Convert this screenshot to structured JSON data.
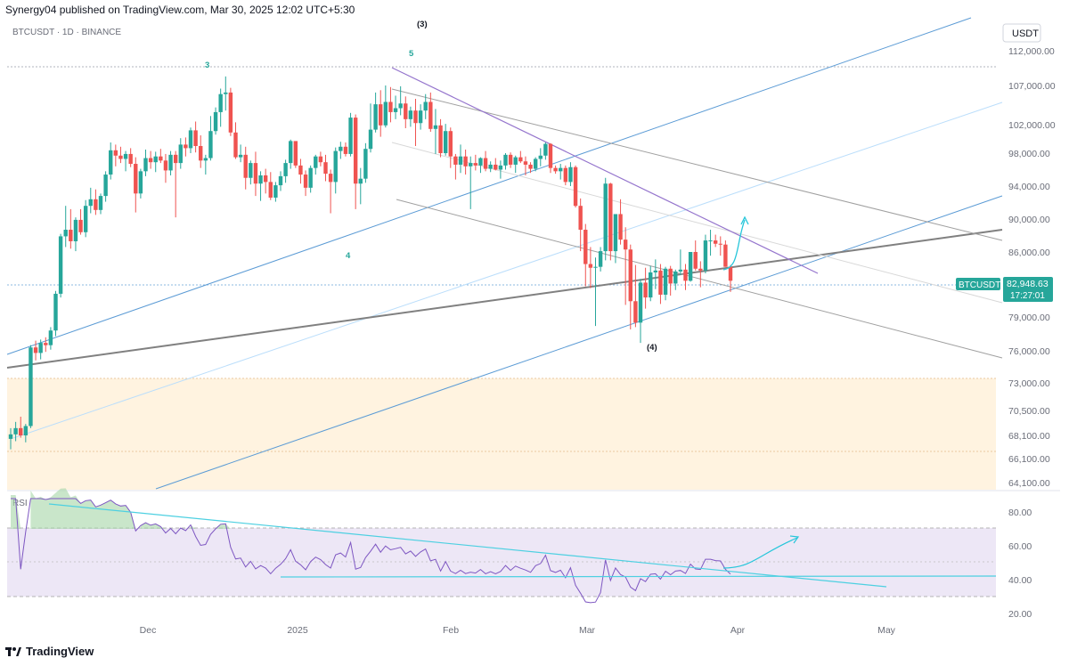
{
  "header": {
    "publisher_text": "Synergy04 published on TradingView.com, Mar 30, 2025 12:02 UTC+5:30"
  },
  "symbol_label": "BTCUSDT · 1D · BINANCE",
  "currency_label": "USDT",
  "price_tag": {
    "symbol": "BTCUSDT",
    "price": "82,948.63",
    "countdown": "17:27:01"
  },
  "rsi_label": "RSI",
  "footer": {
    "brand": "TradingView"
  },
  "colors": {
    "up": "#26a69a",
    "down": "#ef5350",
    "rsi_line": "#7e57c2",
    "rsi_band": "#ede7f6",
    "channel": "#5b9bd5",
    "triangle": "#9575cd",
    "zone": "#fff3e0",
    "wave_teal": "#26a69a"
  },
  "chart_data": {
    "type": "candlestick",
    "y_axis": {
      "ticks": [
        "112,000.00",
        "107,000.00",
        "102,000.00",
        "98,000.00",
        "94,000.00",
        "90,000.00",
        "86,000.00",
        "79,000.00",
        "76,000.00",
        "73,000.00",
        "70,500.00",
        "68,100.00",
        "66,100.00",
        "64,100.00"
      ]
    },
    "x_axis": {
      "ticks": [
        "Dec",
        "2025",
        "Feb",
        "Mar",
        "Apr",
        "May"
      ]
    },
    "rsi_axis": {
      "ticks": [
        "80.00",
        "60.00",
        "40.00",
        "20.00"
      ],
      "upper_band": 70,
      "lower_band": 30
    },
    "last_price": 82948.63,
    "wave_labels": [
      {
        "text": "3",
        "style": "teal"
      },
      {
        "text": "(3)",
        "style": "black"
      },
      {
        "text": "5",
        "style": "teal"
      },
      {
        "text": "4",
        "style": "teal"
      },
      {
        "text": "(4)",
        "style": "black"
      }
    ],
    "ohlc_approx": [
      [
        67800,
        68800,
        66900,
        68200
      ],
      [
        68200,
        69400,
        67600,
        68800
      ],
      [
        68800,
        69900,
        67900,
        68100
      ],
      [
        68100,
        69200,
        67500,
        69000
      ],
      [
        69000,
        76500,
        68800,
        76300
      ],
      [
        76300,
        76900,
        75100,
        75800
      ],
      [
        75800,
        77000,
        75200,
        76700
      ],
      [
        76700,
        77200,
        75900,
        76500
      ],
      [
        76500,
        78100,
        76100,
        77800
      ],
      [
        77800,
        81800,
        77300,
        81500
      ],
      [
        81500,
        88200,
        81100,
        87900
      ],
      [
        87900,
        91600,
        86600,
        88700
      ],
      [
        88700,
        91200,
        86400,
        87300
      ],
      [
        87300,
        90200,
        86100,
        89900
      ],
      [
        89900,
        91200,
        88100,
        88400
      ],
      [
        88400,
        92300,
        87800,
        91600
      ],
      [
        91600,
        93800,
        90700,
        92400
      ],
      [
        92400,
        93600,
        90500,
        91100
      ],
      [
        91100,
        93100,
        90600,
        92800
      ],
      [
        92800,
        95800,
        92100,
        95400
      ],
      [
        95400,
        99500,
        94800,
        98400
      ],
      [
        98400,
        99200,
        96400,
        97700
      ],
      [
        97700,
        98900,
        96800,
        97300
      ],
      [
        97300,
        98300,
        95800,
        97900
      ],
      [
        97900,
        98700,
        96300,
        96700
      ],
      [
        96700,
        97500,
        90800,
        93100
      ],
      [
        93100,
        96100,
        92500,
        95800
      ],
      [
        95800,
        98500,
        95200,
        97400
      ],
      [
        97400,
        98300,
        96100,
        96900
      ],
      [
        96900,
        98200,
        95700,
        97600
      ],
      [
        97600,
        98600,
        96800,
        97100
      ],
      [
        97100,
        97900,
        94400,
        95900
      ],
      [
        95900,
        98300,
        95300,
        97800
      ],
      [
        97800,
        98300,
        90200,
        96800
      ],
      [
        96800,
        100100,
        96100,
        99200
      ],
      [
        99200,
        100200,
        97600,
        98700
      ],
      [
        98700,
        101600,
        98000,
        101200
      ],
      [
        101200,
        102400,
        98100,
        99000
      ],
      [
        99000,
        100500,
        96200,
        97100
      ],
      [
        97100,
        97800,
        95400,
        97400
      ],
      [
        97400,
        103100,
        97100,
        101100
      ],
      [
        101100,
        104200,
        100600,
        103600
      ],
      [
        103600,
        106600,
        101700,
        105900
      ],
      [
        105900,
        108300,
        103800,
        106100
      ],
      [
        106100,
        106700,
        100400,
        100900
      ],
      [
        100900,
        102300,
        97300,
        97500
      ],
      [
        97500,
        99200,
        96900,
        97800
      ],
      [
        97800,
        98900,
        93600,
        95000
      ],
      [
        95000,
        97100,
        94200,
        96800
      ],
      [
        96800,
        98200,
        92800,
        94300
      ],
      [
        94300,
        95800,
        92200,
        95300
      ],
      [
        95300,
        96100,
        93100,
        94500
      ],
      [
        94500,
        95700,
        92300,
        92600
      ],
      [
        92600,
        94500,
        92100,
        94100
      ],
      [
        94100,
        95800,
        93400,
        95200
      ],
      [
        95200,
        97200,
        94400,
        96800
      ],
      [
        96800,
        99900,
        96100,
        99700
      ],
      [
        99700,
        99500,
        96200,
        96500
      ],
      [
        96500,
        97300,
        94300,
        95400
      ],
      [
        95400,
        95900,
        92800,
        93800
      ],
      [
        93800,
        96500,
        93200,
        96200
      ],
      [
        96200,
        97800,
        95400,
        97600
      ],
      [
        97600,
        98200,
        96400,
        96900
      ],
      [
        96900,
        97800,
        94600,
        95500
      ],
      [
        95500,
        96000,
        90700,
        94500
      ],
      [
        94500,
        98800,
        93100,
        98300
      ],
      [
        98300,
        99600,
        97300,
        98900
      ],
      [
        98900,
        99500,
        97600,
        97900
      ],
      [
        97900,
        103500,
        97600,
        102900
      ],
      [
        102900,
        103300,
        91200,
        94300
      ],
      [
        94300,
        96200,
        91800,
        94900
      ],
      [
        94900,
        99400,
        94400,
        98600
      ],
      [
        98600,
        104700,
        98100,
        101300
      ],
      [
        101300,
        106100,
        100900,
        104600
      ],
      [
        104600,
        106400,
        100300,
        101900
      ],
      [
        101900,
        107000,
        101600,
        104900
      ],
      [
        104900,
        106800,
        102300,
        103600
      ],
      [
        103600,
        105700,
        102700,
        104100
      ],
      [
        104100,
        106900,
        103200,
        104700
      ],
      [
        104700,
        105600,
        101500,
        102700
      ],
      [
        102700,
        104300,
        101700,
        103800
      ],
      [
        103800,
        105300,
        99000,
        102200
      ],
      [
        102200,
        104600,
        101300,
        103800
      ],
      [
        103800,
        105900,
        102700,
        104900
      ],
      [
        104900,
        106100,
        101000,
        101400
      ],
      [
        101400,
        104000,
        97900,
        101900
      ],
      [
        101900,
        102700,
        97500,
        98000
      ],
      [
        98000,
        102100,
        97700,
        101100
      ],
      [
        101100,
        101600,
        96200,
        97600
      ],
      [
        97600,
        97900,
        94800,
        96600
      ],
      [
        96600,
        99200,
        95600,
        97600
      ],
      [
        97600,
        98500,
        95400,
        96400
      ],
      [
        96400,
        97600,
        91200,
        96800
      ],
      [
        96800,
        97800,
        95900,
        96500
      ],
      [
        96500,
        97500,
        95600,
        97400
      ],
      [
        97400,
        98300,
        95800,
        96100
      ],
      [
        96100,
        97000,
        95700,
        96600
      ],
      [
        96600,
        97400,
        95900,
        96000
      ],
      [
        96000,
        97100,
        94900,
        96500
      ],
      [
        96500,
        98000,
        96000,
        97800
      ],
      [
        97800,
        98100,
        96200,
        96600
      ],
      [
        96600,
        97700,
        95600,
        97500
      ],
      [
        97500,
        98300,
        96800,
        97000
      ],
      [
        97000,
        97600,
        95300,
        96600
      ],
      [
        96600,
        96900,
        95600,
        96100
      ],
      [
        96100,
        97500,
        95800,
        97300
      ],
      [
        97300,
        98700,
        96400,
        97700
      ],
      [
        97700,
        99500,
        97200,
        99300
      ],
      [
        99300,
        99400,
        95600,
        96200
      ],
      [
        96200,
        96500,
        95500,
        95800
      ],
      [
        95800,
        96700,
        94800,
        96200
      ],
      [
        96200,
        96500,
        94100,
        94500
      ],
      [
        94500,
        96900,
        94000,
        96300
      ],
      [
        96300,
        96500,
        91400,
        91600
      ],
      [
        91600,
        92500,
        86100,
        88700
      ],
      [
        88700,
        89400,
        82300,
        84700
      ],
      [
        84700,
        86600,
        82100,
        84300
      ],
      [
        84300,
        85400,
        78200,
        84400
      ],
      [
        84400,
        86600,
        83900,
        86100
      ],
      [
        86100,
        95000,
        85100,
        94300
      ],
      [
        94300,
        94400,
        85100,
        86100
      ],
      [
        86100,
        90500,
        84800,
        90600
      ],
      [
        90600,
        92400,
        86900,
        87500
      ],
      [
        87500,
        89000,
        80300,
        86300
      ],
      [
        86300,
        86900,
        77900,
        80700
      ],
      [
        80700,
        84600,
        78100,
        78500
      ],
      [
        78500,
        83100,
        76700,
        82700
      ],
      [
        82700,
        84300,
        79900,
        81100
      ],
      [
        81100,
        84500,
        80700,
        83800
      ],
      [
        83800,
        85200,
        82000,
        84000
      ],
      [
        84000,
        84700,
        80400,
        81400
      ],
      [
        81400,
        84400,
        80800,
        84200
      ],
      [
        84200,
        84500,
        81300,
        82600
      ],
      [
        82600,
        84100,
        81900,
        83900
      ],
      [
        83900,
        86300,
        83500,
        84100
      ],
      [
        84100,
        84700,
        81900,
        82900
      ],
      [
        82900,
        85900,
        82800,
        86000
      ],
      [
        86000,
        87400,
        84000,
        84200
      ],
      [
        84200,
        85000,
        82200,
        84000
      ],
      [
        84000,
        88100,
        83700,
        87400
      ],
      [
        87400,
        88700,
        85600,
        87400
      ],
      [
        87400,
        88100,
        86600,
        87000
      ],
      [
        87000,
        87900,
        85600,
        86900
      ],
      [
        86900,
        87400,
        84400,
        84400
      ],
      [
        84400,
        84600,
        81700,
        82900
      ]
    ]
  }
}
